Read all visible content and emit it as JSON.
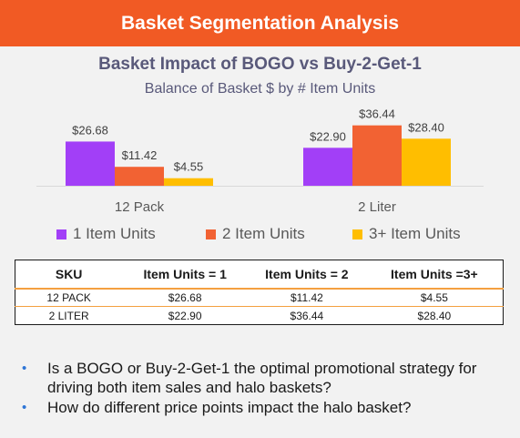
{
  "header": {
    "title": "Basket Segmentation Analysis"
  },
  "colors": {
    "header_bg": "#f15a24",
    "series_1": "#a23ff7",
    "series_2": "#f26233",
    "series_3": "#ffbe00",
    "table_accent": "#f4a040",
    "bullet": "#2e75d6"
  },
  "chart_data": {
    "type": "bar",
    "title": "Basket Impact of BOGO vs Buy-2-Get-1",
    "subtitle": "Balance of Basket $ by # Item Units",
    "categories": [
      "12 Pack",
      "2 Liter"
    ],
    "series": [
      {
        "name": "1 Item Units",
        "values": [
          26.68,
          22.9
        ],
        "labels": [
          "$26.68",
          "$22.90"
        ]
      },
      {
        "name": "2 Item Units",
        "values": [
          11.42,
          36.44
        ],
        "labels": [
          "$11.42",
          "$36.44"
        ]
      },
      {
        "name": "3+ Item Units",
        "values": [
          4.55,
          28.4
        ],
        "labels": [
          "$4.55",
          "$28.40"
        ]
      }
    ],
    "ylim": [
      0,
      40
    ],
    "grid": false,
    "legend_position": "bottom"
  },
  "table": {
    "headers": [
      "SKU",
      "Item Units  = 1",
      "Item Units = 2",
      "Item Units =3+"
    ],
    "rows": [
      [
        "12 PACK",
        "$26.68",
        "$11.42",
        "$4.55"
      ],
      [
        "2 LITER",
        "$22.90",
        "$36.44",
        "$28.40"
      ]
    ]
  },
  "questions": [
    "Is a BOGO or Buy-2-Get-1 the optimal promotional strategy for driving both item sales and halo baskets?",
    "How do different price points impact the halo basket?"
  ],
  "bullet_glyph": "•"
}
